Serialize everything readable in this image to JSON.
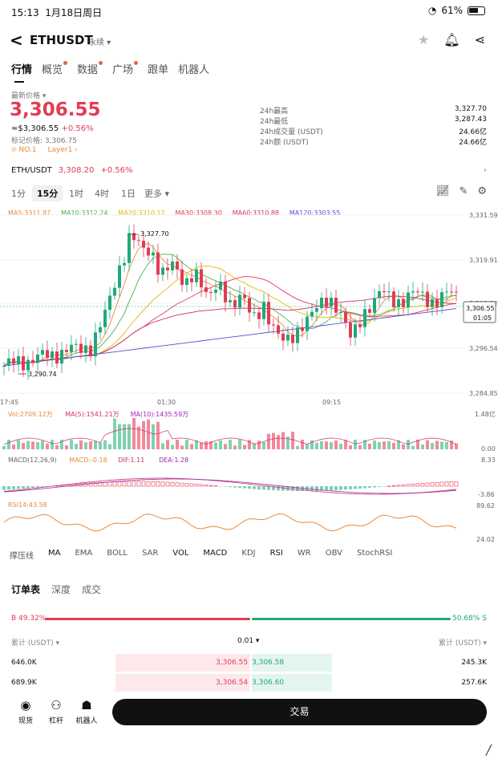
{
  "status": {
    "time": "15:13",
    "date": "1月18日周日",
    "battery": "61%"
  },
  "header": {
    "pair": "ETHUSDT",
    "type": "永续",
    "back": "<"
  },
  "tabs": [
    "行情",
    "概览",
    "数据",
    "广场",
    "跟单",
    "机器人"
  ],
  "ticker": {
    "latest_label": "最新价格 ▾",
    "price": "3,306.55",
    "usd": "≈$3,306.55",
    "change": "+0.56%",
    "mark": "标记价格: 3,306.75",
    "rank": "NO.1",
    "tag": "Layer1 ›"
  },
  "stats": [
    {
      "k": "24h最高",
      "v": "3,327.70"
    },
    {
      "k": "24h最低",
      "v": "3,287.43"
    },
    {
      "k": "24h成交量 (USDT)",
      "v": "24.66亿"
    },
    {
      "k": "24h额 (USDT)",
      "v": "24.66亿"
    }
  ],
  "spot": {
    "pair": "ETH/USDT",
    "price": "3,308.20",
    "change": "+0.56%"
  },
  "timebar": [
    "1分",
    "15分",
    "1时",
    "4时",
    "1日",
    "更多 ▾"
  ],
  "chart": {
    "ma_legend": [
      {
        "t": "MA5:3311.87",
        "c": "#e98a3a"
      },
      {
        "t": "MA10:3312.24",
        "c": "#4caf50"
      },
      {
        "t": "MA20:3310.17",
        "c": "#e6b800"
      },
      {
        "t": "MA30:3308.30",
        "c": "#e23b54"
      },
      {
        "t": "MA60:3310.88",
        "c": "#d0306a"
      },
      {
        "t": "MA120:3303.55",
        "c": "#5b4ad6"
      }
    ],
    "y_ticks": [
      "3,331.59",
      "3,319.91",
      "3,308.22",
      "3,296.54",
      "3,284.85"
    ],
    "x_ticks": [
      "17:45",
      "01:30",
      "09:15"
    ],
    "high_label": "3,327.70",
    "low_label": "3,290.74",
    "current_price": "3,306.55",
    "countdown": "01:05",
    "vol_legend": [
      {
        "t": "Vol:2709.12万",
        "c": "#e98a3a"
      },
      {
        "t": "MA(5):1541.21万",
        "c": "#d0306a"
      },
      {
        "t": "MA(10):1435.59万",
        "c": "#9c27b0"
      }
    ],
    "vol_ticks": [
      "1.48亿",
      "0.00"
    ],
    "macd_legend": [
      {
        "t": "MACD(12,26,9)",
        "c": "#666666"
      },
      {
        "t": "MACD:-0.18",
        "c": "#e98a3a"
      },
      {
        "t": "DIF:1.11",
        "c": "#d0306a"
      },
      {
        "t": "DEA:1.28",
        "c": "#9c27b0"
      }
    ],
    "macd_ticks": [
      "8.33",
      "-3.86"
    ],
    "rsi_legend": "RSI14:43.58",
    "rsi_ticks": [
      "89.62",
      "24.02"
    ]
  },
  "indicators": [
    "撑压线",
    "MA",
    "EMA",
    "BOLL",
    "SAR",
    "VOL",
    "MACD",
    "KDJ",
    "RSI",
    "WR",
    "OBV",
    "StochRSI"
  ],
  "orderbook": {
    "tabs": [
      "订单表",
      "深度",
      "成交"
    ],
    "buy_pct": "B 49.32%",
    "sell_pct": "50.68% S",
    "head_left": "累计 (USDT) ▾",
    "head_mid": "0.01 ▾",
    "head_right": "累计 (USDT) ▾",
    "rows": [
      {
        "bq": "646.0K",
        "bp": "3,306.55",
        "sp": "3,306.58",
        "sq": "245.3K"
      },
      {
        "bq": "689.9K",
        "bp": "3,306.54",
        "sp": "3,306.60",
        "sq": "257.6K"
      }
    ]
  },
  "bottom_nav": {
    "spot": "现货",
    "lever": "杠杆",
    "bot": "机器人",
    "trade": "交易"
  }
}
